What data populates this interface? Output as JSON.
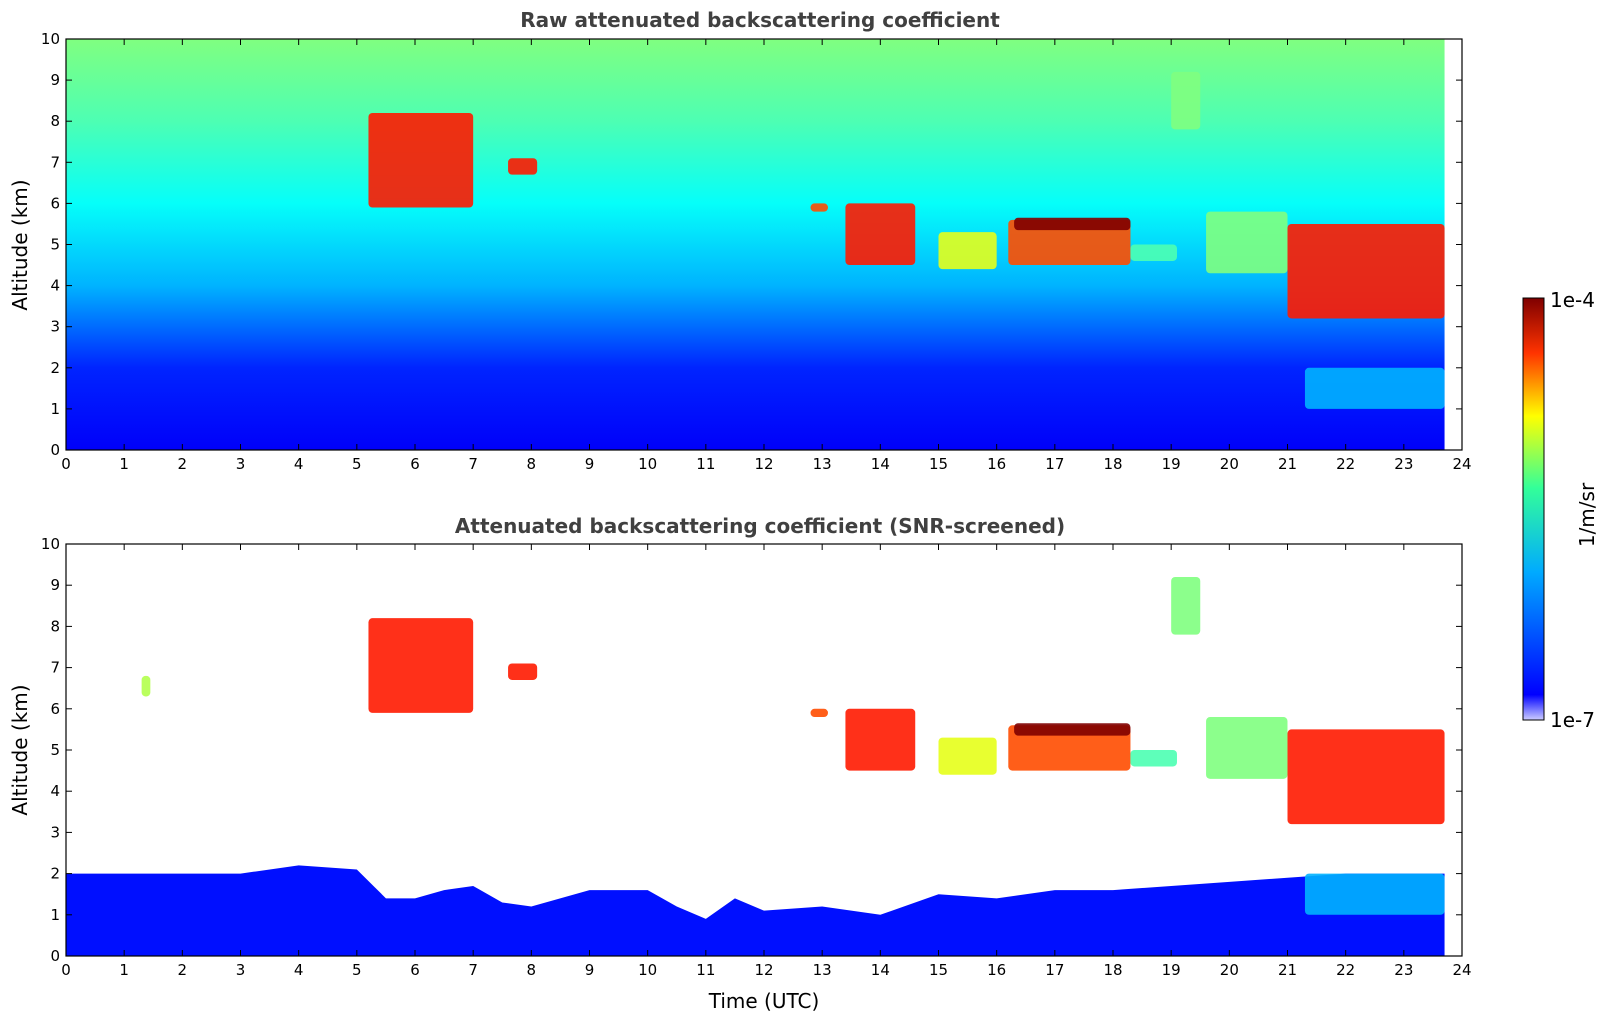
{
  "colors": {
    "low": "#0000ff",
    "mid": "#33ff66",
    "high": "#ffcc00",
    "max": "#7f0000",
    "background": "#ffffff"
  },
  "chart_data": [
    {
      "type": "heatmap",
      "title": "Raw attenuated backscattering coefficient",
      "xlabel": "",
      "ylabel": "Altitude (km)",
      "xlim": [
        0,
        24
      ],
      "ylim": [
        0,
        10
      ],
      "xticks": [
        "0",
        "1",
        "2",
        "3",
        "4",
        "5",
        "6",
        "7",
        "8",
        "9",
        "10",
        "11",
        "12",
        "13",
        "14",
        "15",
        "16",
        "17",
        "18",
        "19",
        "20",
        "21",
        "22",
        "23",
        "24"
      ],
      "yticks": [
        "0",
        "1",
        "2",
        "3",
        "4",
        "5",
        "6",
        "7",
        "8",
        "9",
        "10"
      ],
      "data_end_time": 23.7,
      "layers": [
        {
          "x0": 5.2,
          "x1": 7.0,
          "y0": 5.9,
          "y1": 8.2,
          "level": 0.85
        },
        {
          "x0": 7.6,
          "x1": 8.1,
          "y0": 6.7,
          "y1": 7.1,
          "level": 0.85
        },
        {
          "x0": 12.8,
          "x1": 13.1,
          "y0": 5.8,
          "y1": 6.0,
          "level": 0.8
        },
        {
          "x0": 13.4,
          "x1": 14.6,
          "y0": 4.5,
          "y1": 6.0,
          "level": 0.85
        },
        {
          "x0": 15.0,
          "x1": 16.0,
          "y0": 4.4,
          "y1": 5.3,
          "level": 0.6
        },
        {
          "x0": 16.2,
          "x1": 18.3,
          "y0": 4.5,
          "y1": 5.6,
          "level": 0.8
        },
        {
          "x0": 16.3,
          "x1": 18.3,
          "y0": 5.35,
          "y1": 5.65,
          "level": 1.0
        },
        {
          "x0": 18.3,
          "x1": 19.1,
          "y0": 4.6,
          "y1": 5.0,
          "level": 0.45
        },
        {
          "x0": 19.0,
          "x1": 19.5,
          "y0": 7.8,
          "y1": 9.2,
          "level": 0.5
        },
        {
          "x0": 19.6,
          "x1": 21.0,
          "y0": 4.3,
          "y1": 5.8,
          "level": 0.5
        },
        {
          "x0": 21.0,
          "x1": 23.7,
          "y0": 3.2,
          "y1": 5.5,
          "level": 0.85
        },
        {
          "x0": 21.3,
          "x1": 23.7,
          "y0": 1.0,
          "y1": 2.0,
          "level": 0.3
        }
      ]
    },
    {
      "type": "heatmap",
      "title": "Attenuated backscattering coefficient (SNR-screened)",
      "xlabel": "Time (UTC)",
      "ylabel": "Altitude (km)",
      "xlim": [
        0,
        24
      ],
      "ylim": [
        0,
        10
      ],
      "xticks": [
        "0",
        "1",
        "2",
        "3",
        "4",
        "5",
        "6",
        "7",
        "8",
        "9",
        "10",
        "11",
        "12",
        "13",
        "14",
        "15",
        "16",
        "17",
        "18",
        "19",
        "20",
        "21",
        "22",
        "23",
        "24"
      ],
      "yticks": [
        "0",
        "1",
        "2",
        "3",
        "4",
        "5",
        "6",
        "7",
        "8",
        "9",
        "10"
      ],
      "data_end_time": 23.7,
      "boundary_layer_top": [
        [
          0,
          2.0
        ],
        [
          1,
          2.0
        ],
        [
          2,
          2.0
        ],
        [
          3,
          2.0
        ],
        [
          4,
          2.2
        ],
        [
          5,
          2.1
        ],
        [
          5.5,
          1.4
        ],
        [
          6,
          1.4
        ],
        [
          6.5,
          1.6
        ],
        [
          7,
          1.7
        ],
        [
          7.5,
          1.3
        ],
        [
          8,
          1.2
        ],
        [
          9,
          1.6
        ],
        [
          10,
          1.6
        ],
        [
          10.5,
          1.2
        ],
        [
          11,
          0.9
        ],
        [
          11.5,
          1.4
        ],
        [
          12,
          1.1
        ],
        [
          13,
          1.2
        ],
        [
          14,
          1.0
        ],
        [
          15,
          1.5
        ],
        [
          16,
          1.4
        ],
        [
          17,
          1.6
        ],
        [
          18,
          1.6
        ],
        [
          19,
          1.7
        ],
        [
          20,
          1.8
        ],
        [
          21,
          1.9
        ],
        [
          22,
          2.0
        ],
        [
          23,
          2.0
        ],
        [
          23.7,
          2.0
        ]
      ],
      "layers": [
        {
          "x0": 1.3,
          "x1": 1.45,
          "y0": 6.3,
          "y1": 6.8,
          "level": 0.55
        },
        {
          "x0": 5.2,
          "x1": 7.0,
          "y0": 5.9,
          "y1": 8.2,
          "level": 0.85
        },
        {
          "x0": 7.6,
          "x1": 8.1,
          "y0": 6.7,
          "y1": 7.1,
          "level": 0.85
        },
        {
          "x0": 12.8,
          "x1": 13.1,
          "y0": 5.8,
          "y1": 6.0,
          "level": 0.8
        },
        {
          "x0": 13.4,
          "x1": 14.6,
          "y0": 4.5,
          "y1": 6.0,
          "level": 0.85
        },
        {
          "x0": 15.0,
          "x1": 16.0,
          "y0": 4.4,
          "y1": 5.3,
          "level": 0.6
        },
        {
          "x0": 16.2,
          "x1": 18.3,
          "y0": 4.5,
          "y1": 5.6,
          "level": 0.8
        },
        {
          "x0": 16.3,
          "x1": 18.3,
          "y0": 5.35,
          "y1": 5.65,
          "level": 1.0
        },
        {
          "x0": 18.3,
          "x1": 19.1,
          "y0": 4.6,
          "y1": 5.0,
          "level": 0.45
        },
        {
          "x0": 19.0,
          "x1": 19.5,
          "y0": 7.8,
          "y1": 9.2,
          "level": 0.5
        },
        {
          "x0": 19.6,
          "x1": 21.0,
          "y0": 4.3,
          "y1": 5.8,
          "level": 0.5
        },
        {
          "x0": 21.0,
          "x1": 23.7,
          "y0": 3.2,
          "y1": 5.5,
          "level": 0.85
        },
        {
          "x0": 21.3,
          "x1": 23.7,
          "y0": 1.0,
          "y1": 2.0,
          "level": 0.3
        }
      ]
    }
  ],
  "colorbar": {
    "label": "1/m/sr",
    "max_label": "1e-4",
    "min_label": "1e-7"
  }
}
